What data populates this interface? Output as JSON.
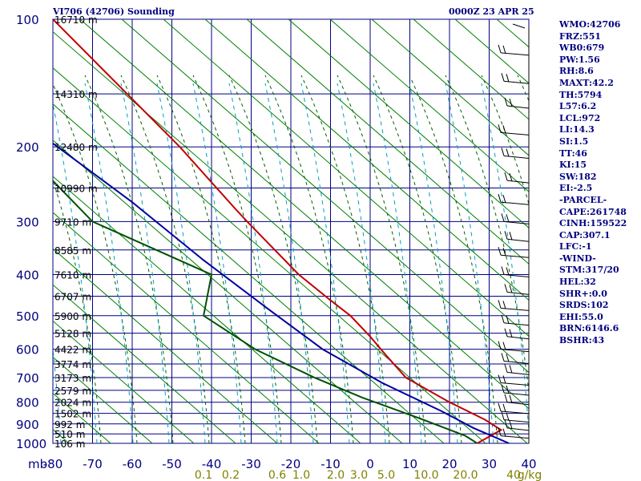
{
  "header": {
    "title": "VI706 (42706) Sounding",
    "time": "0000Z 23 APR 25"
  },
  "stats": [
    "WMO:42706",
    "FRZ:551",
    "WB0:679",
    "PW:1.56",
    "RH:8.6",
    "MAXT:42.2",
    "TH:5794",
    "L57:6.2",
    "LCL:972",
    "LI:14.3",
    "SI:1.5",
    "TT:46",
    "KI:15",
    "SW:182",
    "EI:-2.5",
    "-PARCEL-",
    "CAPE:261748",
    "CINH:159522",
    "CAP:307.1",
    "LFC:-1",
    "-WIND-",
    "STM:317/20",
    "HEL:32",
    "SHR+:0.0",
    "SRDS:102",
    "EHI:55.0",
    "BRN:6146.6",
    "BSHR:43"
  ],
  "chart_data": {
    "type": "line",
    "title": "",
    "xlabel": "",
    "ylabel": "mb",
    "x_scale": "linear",
    "y_scale": "log",
    "xlim": [
      -80,
      40
    ],
    "ylim": [
      1000,
      100
    ],
    "x_ticks": [
      -80,
      -70,
      -60,
      -50,
      -40,
      -30,
      -20,
      -10,
      0,
      10,
      20,
      30,
      40
    ],
    "y_ticks": [
      100,
      200,
      300,
      400,
      500,
      600,
      700,
      800,
      900,
      1000
    ],
    "y_tick_labels": [
      "100",
      "200",
      "300",
      "400",
      "500",
      "600",
      "700",
      "800",
      "900",
      "1000"
    ],
    "height_labels": [
      {
        "p": 100,
        "label": "16710 m"
      },
      {
        "p": 150,
        "label": "14310 m"
      },
      {
        "p": 200,
        "label": "12480 m"
      },
      {
        "p": 250,
        "label": "10990 m"
      },
      {
        "p": 300,
        "label": "9710 m"
      },
      {
        "p": 350,
        "label": "8585 m"
      },
      {
        "p": 400,
        "label": "7610 m"
      },
      {
        "p": 450,
        "label": "6707 m"
      },
      {
        "p": 500,
        "label": "5900 m"
      },
      {
        "p": 550,
        "label": "5128 m"
      },
      {
        "p": 600,
        "label": "4422 m"
      },
      {
        "p": 650,
        "label": "3774 m"
      },
      {
        "p": 700,
        "label": "3173 m"
      },
      {
        "p": 750,
        "label": "2579 m"
      },
      {
        "p": 800,
        "label": "2024 m"
      },
      {
        "p": 850,
        "label": "1502 m"
      },
      {
        "p": 900,
        "label": "992 m"
      },
      {
        "p": 950,
        "label": "510 m"
      },
      {
        "p": 1000,
        "label": "106 m"
      }
    ],
    "mixing_ratio_labels": [
      "0.1",
      "0.2",
      "0.6",
      "1.0",
      "2.0",
      "3.0",
      "5.0",
      "10.0",
      "20.0",
      "40",
      "g/kg"
    ],
    "series": [
      {
        "name": "",
        "kind": "temperature",
        "color": "#c00000",
        "points": [
          [
            -80,
            100
          ],
          [
            -48,
            200
          ],
          [
            -34,
            280
          ],
          [
            -31,
            300
          ],
          [
            -18,
            400
          ],
          [
            -10,
            460
          ],
          [
            -5,
            500
          ],
          [
            0,
            560
          ],
          [
            4,
            620
          ],
          [
            9,
            700
          ],
          [
            20,
            800
          ],
          [
            29,
            880
          ],
          [
            33,
            930
          ],
          [
            27,
            1000
          ]
        ]
      },
      {
        "name": "",
        "kind": "parcel",
        "color": "#0000a0",
        "points": [
          [
            -82,
            190
          ],
          [
            -60,
            270
          ],
          [
            -42,
            370
          ],
          [
            -26,
            480
          ],
          [
            -12,
            600
          ],
          [
            3,
            720
          ],
          [
            18,
            840
          ],
          [
            26,
            920
          ],
          [
            35,
            1000
          ]
        ]
      },
      {
        "name": "",
        "kind": "dewpoint",
        "color": "#005000",
        "points": [
          [
            -82,
            230
          ],
          [
            -70,
            300
          ],
          [
            -40,
            400
          ],
          [
            -42,
            500
          ],
          [
            -29,
            600
          ],
          [
            -14,
            700
          ],
          [
            -2,
            780
          ],
          [
            12,
            870
          ],
          [
            24,
            960
          ],
          [
            27,
            1000
          ]
        ]
      }
    ],
    "grid": true,
    "colors": {
      "grid": "#000080",
      "isotherm": "#008000",
      "dry_adiabat": "#006000",
      "moist_adiabat": "#00a0c0",
      "mixing_ratio_label": "#808000",
      "wind": "#000000"
    }
  }
}
